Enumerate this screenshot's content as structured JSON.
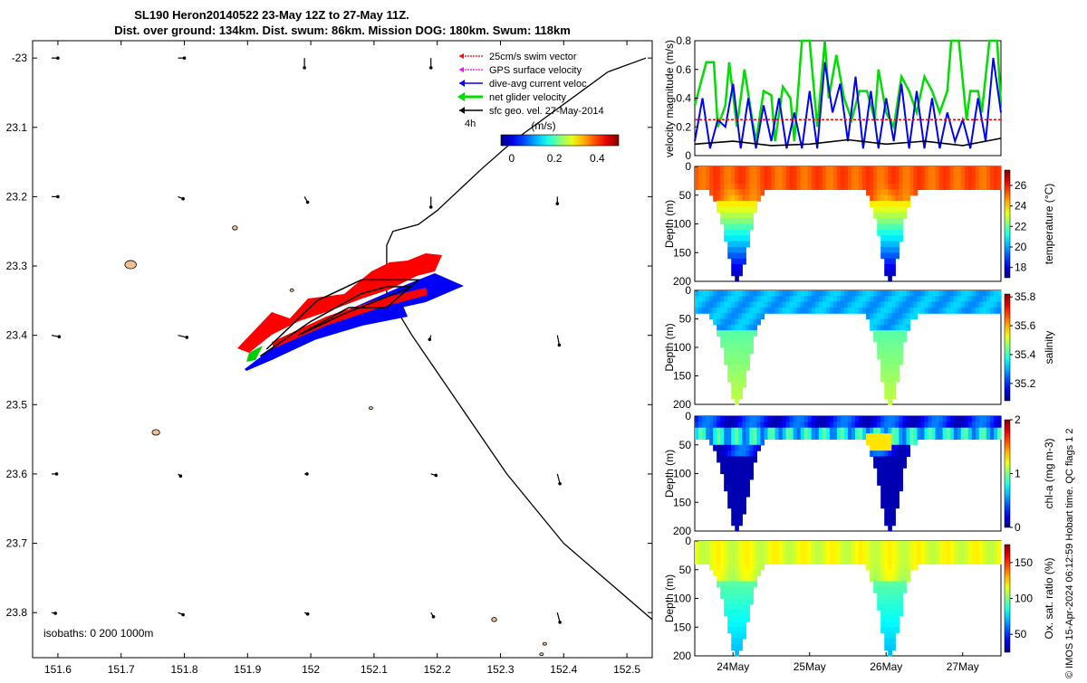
{
  "title": {
    "line1": "SL190 Heron20140522 23-May 12Z to 27-May 11Z.",
    "line2": "Dist. over ground: 134km. Dist. swum: 86km. Mission DOG: 180km. Swum: 118km"
  },
  "colors": {
    "swim": "#ff0000",
    "gps": "#ff00ff",
    "dive": "#0000ff",
    "net": "#00dd00",
    "geo": "#000000",
    "island": "#f0c090"
  },
  "chart_data": [
    {
      "type": "scatter",
      "name": "map",
      "xlim": [
        151.56,
        152.54
      ],
      "ylim": [
        -23.865,
        -22.975
      ],
      "x_ticks": [
        "151.6",
        "151.7",
        "151.8",
        "151.9",
        "152",
        "152.1",
        "152.2",
        "152.3",
        "152.4",
        "152.5"
      ],
      "y_ticks": [
        "-23",
        "23.1",
        "23.2",
        "23.3",
        "23.4",
        "23.5",
        "23.6",
        "23.7",
        "23.8"
      ],
      "legend": [
        {
          "label": "25cm/s swim vector",
          "color": "#ff0000"
        },
        {
          "label": "GPS surface velocity",
          "color": "#ff00ff"
        },
        {
          "label": "dive-avg current veloc.",
          "color": "#0000ff"
        },
        {
          "label": "net glider velocity",
          "color": "#00dd00"
        },
        {
          "label": "sfc geo. vel. 27-May-2014",
          "color": "#000000"
        }
      ],
      "scale_label": "4h",
      "colorbar": {
        "label": "(m/s)",
        "ticks": [
          "0",
          "0.2",
          "0.4"
        ],
        "range": [
          -0.05,
          0.5
        ]
      },
      "isobath_label": "isobaths: 0   200  1000m",
      "isobath_1000m": [
        [
          152.53,
          -23.0
        ],
        [
          152.47,
          -23.02
        ],
        [
          152.32,
          -23.12
        ],
        [
          152.27,
          -23.16
        ],
        [
          152.2,
          -23.22
        ],
        [
          152.17,
          -23.24
        ],
        [
          152.13,
          -23.25
        ],
        [
          152.12,
          -23.27
        ],
        [
          152.12,
          -23.34
        ],
        [
          152.16,
          -23.4
        ],
        [
          152.22,
          -23.48
        ],
        [
          152.31,
          -23.6
        ],
        [
          152.4,
          -23.7
        ],
        [
          152.54,
          -23.81
        ]
      ],
      "glider_track": [
        [
          151.92,
          -23.43
        ],
        [
          152.0,
          -23.38
        ],
        [
          152.08,
          -23.34
        ],
        [
          152.12,
          -23.33
        ],
        [
          152.16,
          -23.33
        ],
        [
          152.05,
          -23.37
        ],
        [
          151.98,
          -23.4
        ],
        [
          152.06,
          -23.36
        ],
        [
          152.12,
          -23.36
        ],
        [
          152.17,
          -23.32
        ],
        [
          152.08,
          -23.32
        ],
        [
          152.01,
          -23.35
        ],
        [
          151.93,
          -23.42
        ]
      ],
      "geo_vectors": [
        [
          151.59,
          -23.0,
          0.01,
          0.0
        ],
        [
          151.79,
          -23.0,
          0.01,
          0.0
        ],
        [
          151.99,
          -23.0,
          0.0,
          0.014
        ],
        [
          152.19,
          -23.0,
          0.0,
          0.014
        ],
        [
          151.59,
          -23.2,
          0.01,
          0.0
        ],
        [
          151.79,
          -23.2,
          0.008,
          0.003
        ],
        [
          151.99,
          -23.2,
          0.005,
          0.008
        ],
        [
          152.19,
          -23.2,
          0.0,
          0.015
        ],
        [
          152.39,
          -23.2,
          0.0,
          0.01
        ],
        [
          151.59,
          -23.4,
          0.012,
          0.002
        ],
        [
          151.79,
          -23.4,
          0.014,
          0.003
        ],
        [
          152.19,
          -23.4,
          -0.002,
          0.006
        ],
        [
          152.39,
          -23.4,
          0.003,
          0.014
        ],
        [
          151.59,
          -23.6,
          0.008,
          0.0
        ],
        [
          151.79,
          -23.6,
          0.004,
          0.003
        ],
        [
          151.99,
          -23.6,
          0.004,
          0.0
        ],
        [
          152.19,
          -23.6,
          0.008,
          0.002
        ],
        [
          152.39,
          -23.6,
          0.004,
          0.014
        ],
        [
          151.59,
          -23.8,
          0.006,
          0.001
        ],
        [
          151.79,
          -23.8,
          0.008,
          0.003
        ],
        [
          151.99,
          -23.8,
          0.005,
          0.002
        ],
        [
          152.19,
          -23.8,
          0.004,
          0.006
        ],
        [
          152.39,
          -23.8,
          0.004,
          0.014
        ]
      ],
      "islands": [
        [
          151.715,
          -23.298,
          0.009,
          0.006
        ],
        [
          151.755,
          -23.54,
          0.006,
          0.004
        ],
        [
          151.88,
          -23.245,
          0.004,
          0.003
        ],
        [
          151.97,
          -23.335,
          0.003,
          0.002
        ],
        [
          152.095,
          -23.505,
          0.003,
          0.002
        ],
        [
          152.29,
          -23.81,
          0.004,
          0.003
        ],
        [
          152.365,
          -23.86,
          0.003,
          0.002
        ],
        [
          152.37,
          -23.845,
          0.003,
          0.002
        ]
      ]
    },
    {
      "type": "line",
      "name": "velocity",
      "ylabel": "velocity magnitude (m/s)",
      "ylim": [
        0,
        0.8
      ],
      "y_ticks": [
        "0",
        "0.2",
        "0.4",
        "0.6",
        "0.8"
      ],
      "xlim": [
        0,
        4
      ],
      "series": [
        {
          "name": "net glider velocity",
          "color": "#00dd00",
          "x": [
            0.0,
            0.15,
            0.25,
            0.3,
            0.4,
            0.45,
            0.55,
            0.65,
            0.75,
            0.8,
            0.9,
            1.0,
            1.05,
            1.15,
            1.25,
            1.3,
            1.4,
            1.5,
            1.6,
            1.7,
            1.75,
            1.85,
            1.95,
            2.05,
            2.15,
            2.25,
            2.35,
            2.4,
            2.5,
            2.6,
            2.7,
            2.8,
            2.9,
            3.0,
            3.1,
            3.2,
            3.3,
            3.35,
            3.45,
            3.55,
            3.6,
            3.7,
            3.75,
            3.85,
            3.95,
            4.0
          ],
          "values": [
            0.35,
            0.65,
            0.65,
            0.2,
            0.35,
            0.65,
            0.2,
            0.6,
            0.25,
            0.1,
            0.45,
            0.42,
            0.1,
            0.48,
            0.4,
            0.1,
            0.8,
            0.8,
            0.2,
            0.8,
            0.4,
            0.7,
            0.4,
            0.25,
            0.45,
            0.45,
            0.25,
            0.6,
            0.3,
            0.2,
            0.55,
            0.45,
            0.3,
            0.55,
            0.45,
            0.3,
            0.45,
            0.8,
            0.8,
            0.25,
            0.45,
            0.45,
            0.3,
            0.8,
            0.8,
            0.35
          ]
        },
        {
          "name": "dive-avg current veloc.",
          "color": "#0000ff",
          "x": [
            0.0,
            0.1,
            0.2,
            0.3,
            0.4,
            0.5,
            0.6,
            0.7,
            0.8,
            0.9,
            1.0,
            1.1,
            1.2,
            1.3,
            1.4,
            1.5,
            1.6,
            1.7,
            1.8,
            1.9,
            2.0,
            2.1,
            2.2,
            2.3,
            2.4,
            2.5,
            2.6,
            2.7,
            2.8,
            2.9,
            3.0,
            3.1,
            3.2,
            3.3,
            3.4,
            3.5,
            3.6,
            3.7,
            3.8,
            3.9,
            4.0
          ],
          "values": [
            0.1,
            0.4,
            0.05,
            0.25,
            0.2,
            0.5,
            0.05,
            0.4,
            0.05,
            0.35,
            0.1,
            0.4,
            0.05,
            0.3,
            0.05,
            0.45,
            0.05,
            0.65,
            0.3,
            0.5,
            0.1,
            0.55,
            0.05,
            0.45,
            0.05,
            0.4,
            0.1,
            0.5,
            0.05,
            0.45,
            0.05,
            0.4,
            0.05,
            0.3,
            0.1,
            0.25,
            0.05,
            0.4,
            0.1,
            0.68,
            0.3
          ]
        },
        {
          "name": "25cm/s swim vector",
          "color": "#ff0000",
          "x": [
            0,
            4
          ],
          "values": [
            0.25,
            0.25
          ]
        },
        {
          "name": "sfc geo. vel.",
          "color": "#000000",
          "x": [
            0.0,
            0.5,
            1.0,
            1.5,
            2.0,
            2.5,
            3.0,
            3.5,
            4.0
          ],
          "values": [
            0.08,
            0.1,
            0.07,
            0.08,
            0.11,
            0.08,
            0.1,
            0.07,
            0.12
          ]
        }
      ]
    },
    {
      "type": "heatmap",
      "name": "temperature",
      "ylabel": "Depth (m)",
      "cbar_label": "temperature (°C)",
      "cbar_ticks": [
        "26",
        "24",
        "22",
        "20",
        "18"
      ],
      "cbar_range": [
        17,
        27.5
      ],
      "depth_ticks": [
        "0",
        "50",
        "100",
        "150",
        "200"
      ]
    },
    {
      "type": "heatmap",
      "name": "salinity",
      "ylabel": "Depth (m)",
      "cbar_label": "salinity",
      "cbar_ticks": [
        "35.8",
        "35.6",
        "35.4",
        "35.2"
      ],
      "cbar_range": [
        35.08,
        35.82
      ],
      "depth_ticks": [
        "0",
        "50",
        "100",
        "150",
        "200"
      ]
    },
    {
      "type": "heatmap",
      "name": "chl-a",
      "ylabel": "Depth (m)",
      "cbar_label": "chl-a (mg m-3)",
      "cbar_ticks": [
        "2",
        "1",
        "0"
      ],
      "cbar_range": [
        0,
        2
      ],
      "depth_ticks": [
        "0",
        "50",
        "100",
        "150",
        "200"
      ]
    },
    {
      "type": "heatmap",
      "name": "oxygen",
      "ylabel": "Depth (m)",
      "cbar_label": "Ox. sat. ratio (%)",
      "cbar_ticks": [
        "150",
        "100",
        "50"
      ],
      "cbar_range": [
        25,
        175
      ],
      "depth_ticks": [
        "0",
        "50",
        "100",
        "150",
        "200"
      ],
      "x_ticks": [
        "24May",
        "25May",
        "26May",
        "27May"
      ]
    }
  ],
  "credit": "© IMOS 15-Apr-2024 06:12:59 Hobart time. QC flags 1  2"
}
